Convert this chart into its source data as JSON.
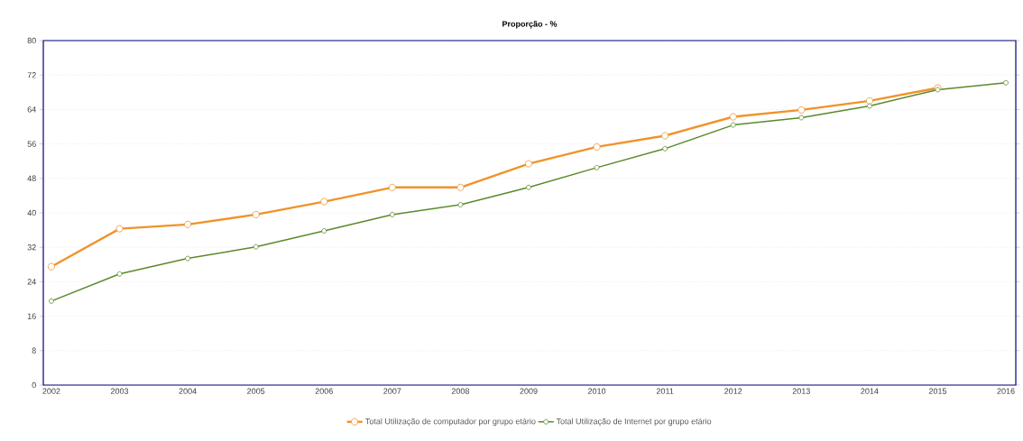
{
  "chart_data": {
    "type": "line",
    "title": "Proporção - %",
    "categories": [
      "2002",
      "2003",
      "2004",
      "2005",
      "2006",
      "2007",
      "2008",
      "2009",
      "2010",
      "2011",
      "2012",
      "2013",
      "2014",
      "2015",
      "2016"
    ],
    "series": [
      {
        "name": "Total Utilização de computador por grupo etário",
        "color": "#f0932a",
        "values": [
          27.5,
          36.3,
          37.3,
          39.6,
          42.6,
          45.9,
          45.9,
          51.4,
          55.3,
          57.9,
          62.3,
          63.9,
          66.0,
          69.0,
          null
        ]
      },
      {
        "name": "Total Utilização de Internet por grupo etário",
        "color": "#5a8a2a",
        "values": [
          19.5,
          25.8,
          29.4,
          32.1,
          35.8,
          39.6,
          41.9,
          45.9,
          50.5,
          54.9,
          60.4,
          62.1,
          64.8,
          68.6,
          70.2
        ]
      }
    ],
    "ylim": [
      0,
      80
    ],
    "yticks": [
      0,
      8,
      16,
      24,
      32,
      40,
      48,
      56,
      64,
      72,
      80
    ],
    "grid": "y",
    "legend": "bottom",
    "marker": "circle",
    "line_style": "solid"
  }
}
